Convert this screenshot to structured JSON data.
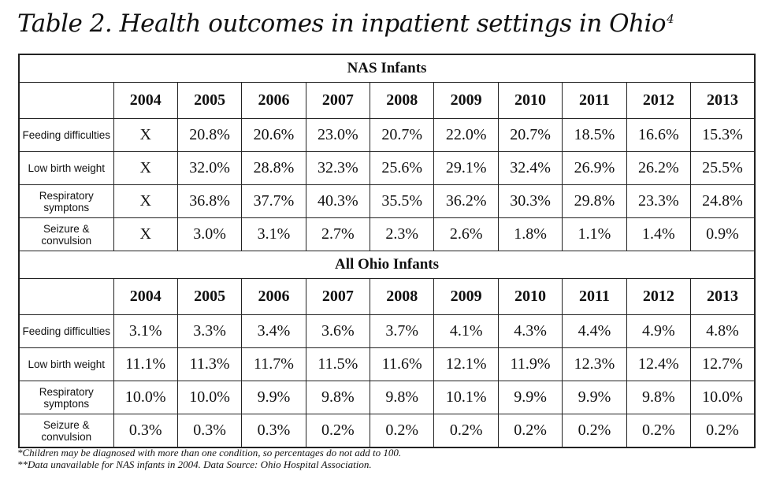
{
  "title": "Table 2. Health outcomes in inpatient settings in Ohio",
  "title_sup": "4",
  "years": [
    "2004",
    "2005",
    "2006",
    "2007",
    "2008",
    "2009",
    "2010",
    "2011",
    "2012",
    "2013"
  ],
  "sections": [
    {
      "heading": "NAS Infants",
      "rows": [
        {
          "label": "Feeding difficulties",
          "values": [
            "X",
            "20.8%",
            "20.6%",
            "23.0%",
            "20.7%",
            "22.0%",
            "20.7%",
            "18.5%",
            "16.6%",
            "15.3%"
          ]
        },
        {
          "label": "Low birth weight",
          "values": [
            "X",
            "32.0%",
            "28.8%",
            "32.3%",
            "25.6%",
            "29.1%",
            "32.4%",
            "26.9%",
            "26.2%",
            "25.5%"
          ]
        },
        {
          "label": "Respiratory symptons",
          "values": [
            "X",
            "36.8%",
            "37.7%",
            "40.3%",
            "35.5%",
            "36.2%",
            "30.3%",
            "29.8%",
            "23.3%",
            "24.8%"
          ]
        },
        {
          "label": "Seizure & convulsion",
          "values": [
            "X",
            "3.0%",
            "3.1%",
            "2.7%",
            "2.3%",
            "2.6%",
            "1.8%",
            "1.1%",
            "1.4%",
            "0.9%"
          ]
        }
      ]
    },
    {
      "heading": "All Ohio Infants",
      "rows": [
        {
          "label": "Feeding difficulties",
          "values": [
            "3.1%",
            "3.3%",
            "3.4%",
            "3.6%",
            "3.7%",
            "4.1%",
            "4.3%",
            "4.4%",
            "4.9%",
            "4.8%"
          ]
        },
        {
          "label": "Low birth weight",
          "values": [
            "11.1%",
            "11.3%",
            "11.7%",
            "11.5%",
            "11.6%",
            "12.1%",
            "11.9%",
            "12.3%",
            "12.4%",
            "12.7%"
          ]
        },
        {
          "label": "Respiratory symptons",
          "values": [
            "10.0%",
            "10.0%",
            "9.9%",
            "9.8%",
            "9.8%",
            "10.1%",
            "9.9%",
            "9.9%",
            "9.8%",
            "10.0%"
          ]
        },
        {
          "label": "Seizure & convulsion",
          "values": [
            "0.3%",
            "0.3%",
            "0.3%",
            "0.2%",
            "0.2%",
            "0.2%",
            "0.2%",
            "0.2%",
            "0.2%",
            "0.2%"
          ]
        }
      ]
    }
  ],
  "notes": [
    "*Children may be diagnosed with more than one condition, so percentages do not add to 100.",
    "**Data unavailable for NAS infants in 2004. Data Source: Ohio Hospital Association."
  ]
}
